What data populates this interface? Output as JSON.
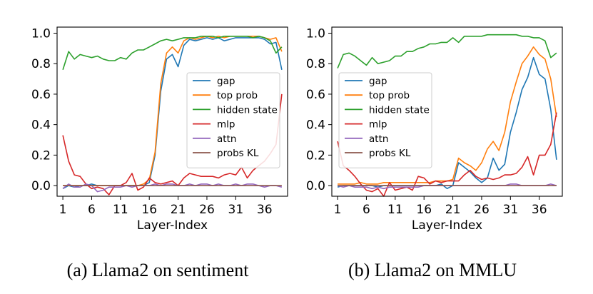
{
  "chart_data": [
    {
      "type": "line",
      "caption": "(a) Llama2 on sentiment",
      "xlabel": "Layer-Index",
      "ylabel": "",
      "xlim": [
        0,
        40
      ],
      "ylim": [
        -0.07,
        1.04
      ],
      "xticks": [
        1,
        6,
        11,
        16,
        21,
        26,
        31,
        36
      ],
      "yticks": [
        0.0,
        0.2,
        0.4,
        0.6,
        0.8,
        1.0
      ],
      "ytick_labels": [
        "0.0",
        "0.2",
        "0.4",
        "0.6",
        "0.8",
        "1.0"
      ],
      "legend_position": "center-right",
      "x": [
        1,
        2,
        3,
        4,
        5,
        6,
        7,
        8,
        9,
        10,
        11,
        12,
        13,
        14,
        15,
        16,
        17,
        18,
        19,
        20,
        21,
        22,
        23,
        24,
        25,
        26,
        27,
        28,
        29,
        30,
        31,
        32,
        33,
        34,
        35,
        36,
        37,
        38,
        39
      ],
      "series": [
        {
          "name": "gap",
          "color": "#1f77b4",
          "values": [
            -0.02,
            0.0,
            -0.01,
            0.0,
            0.0,
            0.01,
            0.0,
            0.0,
            0.0,
            0.0,
            0.0,
            0.0,
            0.0,
            0.0,
            0.0,
            0.02,
            0.2,
            0.62,
            0.83,
            0.86,
            0.78,
            0.92,
            0.96,
            0.95,
            0.96,
            0.97,
            0.96,
            0.97,
            0.95,
            0.96,
            0.97,
            0.97,
            0.97,
            0.97,
            0.97,
            0.96,
            0.93,
            0.94,
            0.76
          ]
        },
        {
          "name": "top prob",
          "color": "#ff7f0e",
          "values": [
            0.0,
            0.0,
            0.0,
            0.0,
            0.0,
            0.0,
            0.0,
            0.0,
            0.0,
            0.0,
            0.0,
            0.0,
            0.0,
            0.0,
            0.01,
            0.04,
            0.22,
            0.67,
            0.87,
            0.91,
            0.87,
            0.95,
            0.97,
            0.96,
            0.97,
            0.98,
            0.97,
            0.98,
            0.97,
            0.98,
            0.98,
            0.98,
            0.98,
            0.98,
            0.98,
            0.97,
            0.96,
            0.97,
            0.88
          ]
        },
        {
          "name": "hidden state",
          "color": "#2ca02c",
          "values": [
            0.76,
            0.88,
            0.83,
            0.86,
            0.85,
            0.84,
            0.85,
            0.83,
            0.82,
            0.82,
            0.84,
            0.83,
            0.87,
            0.89,
            0.89,
            0.91,
            0.93,
            0.95,
            0.96,
            0.95,
            0.96,
            0.97,
            0.97,
            0.97,
            0.98,
            0.98,
            0.98,
            0.97,
            0.98,
            0.98,
            0.98,
            0.98,
            0.98,
            0.97,
            0.98,
            0.97,
            0.95,
            0.87,
            0.91
          ]
        },
        {
          "name": "mlp",
          "color": "#d62728",
          "values": [
            0.33,
            0.16,
            0.07,
            0.06,
            0.01,
            -0.02,
            -0.01,
            -0.02,
            -0.06,
            0.0,
            0.0,
            0.02,
            0.08,
            -0.03,
            -0.01,
            0.05,
            0.02,
            0.01,
            0.02,
            0.03,
            0.0,
            0.05,
            0.08,
            0.07,
            0.06,
            0.06,
            0.06,
            0.05,
            0.07,
            0.08,
            0.07,
            0.12,
            0.05,
            0.1,
            0.13,
            0.16,
            0.21,
            0.27,
            0.6
          ]
        },
        {
          "name": "attn",
          "color": "#9467bd",
          "values": [
            -0.02,
            0.01,
            -0.01,
            -0.01,
            0.01,
            0.0,
            -0.04,
            -0.03,
            -0.01,
            -0.01,
            -0.01,
            0.0,
            -0.01,
            0.0,
            0.0,
            0.0,
            0.01,
            0.0,
            0.01,
            0.01,
            0.0,
            0.0,
            0.01,
            0.0,
            0.01,
            0.01,
            0.0,
            0.01,
            0.0,
            0.0,
            0.01,
            0.0,
            0.01,
            0.01,
            0.0,
            -0.01,
            0.0,
            0.0,
            -0.01
          ]
        },
        {
          "name": "probs KL",
          "color": "#8c564b",
          "values": [
            0.0,
            0.0,
            0.0,
            0.0,
            0.0,
            0.0,
            0.0,
            0.0,
            0.0,
            0.0,
            0.0,
            0.0,
            0.0,
            0.0,
            0.0,
            0.0,
            0.0,
            0.0,
            0.0,
            0.0,
            0.0,
            0.0,
            0.0,
            0.0,
            0.0,
            0.0,
            0.0,
            0.0,
            0.0,
            0.0,
            0.0,
            0.0,
            0.0,
            0.0,
            0.0,
            0.0,
            0.0,
            0.0,
            0.0
          ]
        }
      ]
    },
    {
      "type": "line",
      "caption": "(b) Llama2 on MMLU",
      "xlabel": "Layer-Index",
      "ylabel": "",
      "xlim": [
        0,
        40
      ],
      "ylim": [
        -0.07,
        1.04
      ],
      "xticks": [
        1,
        6,
        11,
        16,
        21,
        26,
        31,
        36
      ],
      "yticks": [
        0.0,
        0.2,
        0.4,
        0.6,
        0.8,
        1.0
      ],
      "ytick_labels": [
        "0.0",
        "0.2",
        "0.4",
        "0.6",
        "0.8",
        "1.0"
      ],
      "legend_position": "center-right",
      "x": [
        1,
        2,
        3,
        4,
        5,
        6,
        7,
        8,
        9,
        10,
        11,
        12,
        13,
        14,
        15,
        16,
        17,
        18,
        19,
        20,
        21,
        22,
        23,
        24,
        25,
        26,
        27,
        28,
        29,
        30,
        31,
        32,
        33,
        34,
        35,
        36,
        37,
        38,
        39
      ],
      "series": [
        {
          "name": "gap",
          "color": "#1f77b4",
          "values": [
            -0.01,
            0.0,
            0.0,
            0.0,
            0.0,
            0.0,
            0.0,
            -0.01,
            0.0,
            0.0,
            0.0,
            0.0,
            0.0,
            0.0,
            0.0,
            0.0,
            0.0,
            0.0,
            0.01,
            -0.02,
            0.0,
            0.15,
            0.12,
            0.09,
            0.05,
            0.02,
            0.05,
            0.18,
            0.1,
            0.14,
            0.35,
            0.48,
            0.63,
            0.71,
            0.84,
            0.73,
            0.7,
            0.5,
            0.17
          ]
        },
        {
          "name": "top prob",
          "color": "#ff7f0e",
          "values": [
            0.01,
            0.01,
            0.01,
            0.01,
            0.02,
            0.01,
            0.01,
            0.01,
            0.02,
            0.02,
            0.02,
            0.02,
            0.02,
            0.02,
            0.02,
            0.02,
            0.02,
            0.03,
            0.03,
            0.03,
            0.04,
            0.18,
            0.15,
            0.13,
            0.1,
            0.15,
            0.24,
            0.29,
            0.23,
            0.35,
            0.55,
            0.68,
            0.8,
            0.85,
            0.91,
            0.86,
            0.83,
            0.7,
            0.45
          ]
        },
        {
          "name": "hidden state",
          "color": "#2ca02c",
          "values": [
            0.77,
            0.86,
            0.87,
            0.85,
            0.82,
            0.79,
            0.84,
            0.8,
            0.81,
            0.82,
            0.85,
            0.85,
            0.88,
            0.88,
            0.9,
            0.91,
            0.93,
            0.93,
            0.94,
            0.94,
            0.97,
            0.94,
            0.98,
            0.98,
            0.98,
            0.98,
            0.99,
            0.99,
            0.99,
            0.99,
            0.99,
            0.99,
            0.98,
            0.98,
            0.97,
            0.97,
            0.95,
            0.84,
            0.87
          ]
        },
        {
          "name": "mlp",
          "color": "#d62728",
          "values": [
            0.29,
            0.13,
            0.1,
            0.06,
            0.01,
            -0.03,
            -0.04,
            -0.02,
            -0.07,
            0.02,
            -0.03,
            -0.02,
            -0.01,
            -0.03,
            0.06,
            0.05,
            0.01,
            0.03,
            0.02,
            0.03,
            0.03,
            0.03,
            0.07,
            0.1,
            0.06,
            0.04,
            0.05,
            0.04,
            0.05,
            0.07,
            0.07,
            0.08,
            0.12,
            0.19,
            0.07,
            0.2,
            0.2,
            0.27,
            0.48
          ]
        },
        {
          "name": "attn",
          "color": "#9467bd",
          "values": [
            0.0,
            -0.01,
            0.0,
            -0.01,
            -0.01,
            -0.01,
            -0.02,
            -0.01,
            -0.02,
            -0.01,
            -0.01,
            -0.01,
            -0.01,
            -0.01,
            -0.01,
            0.0,
            0.0,
            0.0,
            0.0,
            0.0,
            0.0,
            0.0,
            0.0,
            0.0,
            0.0,
            0.0,
            0.0,
            0.0,
            0.0,
            0.0,
            0.01,
            0.01,
            0.0,
            0.0,
            0.0,
            0.0,
            0.0,
            0.01,
            0.0
          ]
        },
        {
          "name": "probs KL",
          "color": "#8c564b",
          "values": [
            0.0,
            0.0,
            0.0,
            0.0,
            0.0,
            0.0,
            0.0,
            0.0,
            0.0,
            0.0,
            0.0,
            0.0,
            0.0,
            0.0,
            0.0,
            0.0,
            0.0,
            0.0,
            0.0,
            0.0,
            0.0,
            0.0,
            0.0,
            0.0,
            0.0,
            0.0,
            0.0,
            0.0,
            0.0,
            0.0,
            0.0,
            0.0,
            0.0,
            0.0,
            0.0,
            0.0,
            0.0,
            0.0,
            0.0
          ]
        }
      ]
    }
  ]
}
